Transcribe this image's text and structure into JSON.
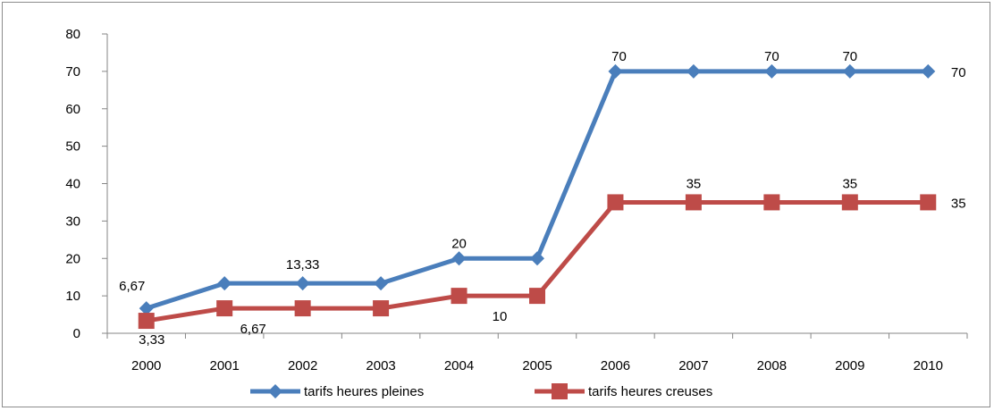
{
  "chart_data": {
    "type": "line",
    "categories": [
      "2000",
      "2001",
      "2002",
      "2003",
      "2004",
      "2005",
      "2006",
      "2007",
      "2008",
      "2009",
      "2010"
    ],
    "ylim": [
      0,
      80
    ],
    "yticks": [
      0,
      10,
      20,
      30,
      40,
      50,
      60,
      70,
      80
    ],
    "ytick_labels": [
      "0",
      "10",
      "20",
      "30",
      "40",
      "50",
      "60",
      "70",
      "80"
    ],
    "grid": false,
    "legend_position": "bottom",
    "series": [
      {
        "name": "tarifs heures pleines",
        "color": "#4a7ebb",
        "marker": "diamond",
        "values": [
          6.67,
          13.33,
          13.33,
          13.33,
          20,
          20,
          70,
          70,
          70,
          70,
          70
        ],
        "data_labels": [
          {
            "index": 0,
            "text": "6,67"
          },
          {
            "index": 2,
            "text": "13,33"
          },
          {
            "index": 4,
            "text": "20"
          },
          {
            "index": 6,
            "text": "70"
          },
          {
            "index": 8,
            "text": "70"
          },
          {
            "index": 9,
            "text": "70"
          },
          {
            "index": 10,
            "text": "70"
          }
        ]
      },
      {
        "name": "tarifs heures creuses",
        "color": "#be4b48",
        "marker": "square",
        "values": [
          3.33,
          6.67,
          6.67,
          6.67,
          10,
          10,
          35,
          35,
          35,
          35,
          35
        ],
        "data_labels": [
          {
            "index": 0,
            "text": "3,33"
          },
          {
            "index": 1,
            "text": "6,67"
          },
          {
            "index": 5,
            "text": "10"
          },
          {
            "index": 7,
            "text": "35"
          },
          {
            "index": 9,
            "text": "35"
          },
          {
            "index": 10,
            "text": "35"
          }
        ]
      }
    ]
  }
}
